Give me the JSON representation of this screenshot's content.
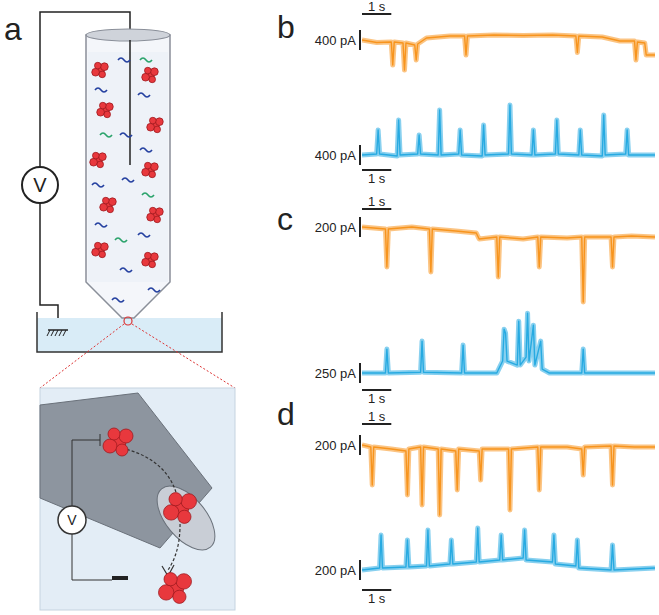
{
  "panel_labels": [
    "a",
    "b",
    "c",
    "d"
  ],
  "schematic": {
    "voltmeter_label": "V",
    "inset_voltmeter_label": "V"
  },
  "chart_data": [
    {
      "type": "line",
      "color": "#f7941d",
      "tick_labels": false,
      "xlim": [
        0,
        10
      ],
      "ylim": [
        -900,
        400
      ],
      "scale_bar": {
        "x": 1,
        "x_label": "1 s",
        "y": 400,
        "y_label": "400 pA"
      },
      "x": [
        0,
        0.5,
        1.0,
        1.05,
        1.1,
        1.4,
        1.45,
        1.5,
        1.8,
        1.85,
        1.9,
        2.2,
        3.0,
        3.5,
        3.55,
        3.6,
        4.5,
        5.5,
        6.5,
        7.3,
        7.35,
        7.4,
        8.2,
        8.8,
        9.3,
        9.35,
        9.4,
        9.65,
        9.7,
        10
      ],
      "values": [
        0,
        -50,
        -40,
        -500,
        -40,
        -60,
        -600,
        -60,
        -100,
        -400,
        -80,
        40,
        80,
        80,
        -300,
        80,
        100,
        90,
        100,
        80,
        -250,
        80,
        60,
        -20,
        -20,
        -400,
        -40,
        -60,
        -300,
        -300
      ]
    },
    {
      "type": "line",
      "color": "#27aae1",
      "tick_labels": false,
      "xlim": [
        0,
        10
      ],
      "ylim": [
        -200,
        1100
      ],
      "scale_bar": {
        "x": 1,
        "x_label": "1 s",
        "y": 400,
        "y_label": "400 pA"
      },
      "x": [
        0,
        0.5,
        0.55,
        0.6,
        1.2,
        1.25,
        1.3,
        1.9,
        1.95,
        2.0,
        2.6,
        2.65,
        2.7,
        3.3,
        3.35,
        3.4,
        4.1,
        4.15,
        4.2,
        5.0,
        5.05,
        5.1,
        5.8,
        5.85,
        5.9,
        6.6,
        6.65,
        6.7,
        7.4,
        7.45,
        7.5,
        8.2,
        8.25,
        8.3,
        9.0,
        9.05,
        9.1,
        10
      ],
      "values": [
        0,
        20,
        500,
        20,
        -20,
        700,
        0,
        20,
        400,
        20,
        0,
        900,
        0,
        20,
        500,
        0,
        -20,
        600,
        0,
        20,
        1000,
        20,
        0,
        500,
        0,
        20,
        700,
        20,
        0,
        500,
        0,
        -20,
        800,
        0,
        20,
        500,
        0,
        0
      ]
    },
    {
      "type": "line",
      "color": "#f7941d",
      "tick_labels": false,
      "xlim": [
        0,
        10
      ],
      "ylim": [
        -780,
        120
      ],
      "scale_bar": {
        "x": 1,
        "x_label": "1 s",
        "y": 200,
        "y_label": "200 pA"
      },
      "x": [
        0,
        0.8,
        0.85,
        0.9,
        1.7,
        2.3,
        2.35,
        2.4,
        3.2,
        3.9,
        4.0,
        4.6,
        4.65,
        4.7,
        5.5,
        6.0,
        6.05,
        6.1,
        7.0,
        7.5,
        7.55,
        7.6,
        8.5,
        8.55,
        8.6,
        9.2,
        10
      ],
      "values": [
        0,
        -20,
        -400,
        -20,
        0,
        -20,
        -450,
        -20,
        -40,
        -60,
        -120,
        -100,
        -500,
        -100,
        -120,
        -100,
        -400,
        -100,
        -110,
        -100,
        -750,
        -100,
        -100,
        -400,
        -100,
        -90,
        -100
      ]
    },
    {
      "type": "line",
      "color": "#27aae1",
      "tick_labels": false,
      "xlim": [
        0,
        10
      ],
      "ylim": [
        -150,
        790
      ],
      "scale_bar": {
        "x": 1,
        "x_label": "1 s",
        "y": 250,
        "y_label": "250 pA"
      },
      "x": [
        0,
        0.8,
        0.85,
        0.9,
        2.0,
        2.05,
        2.1,
        3.4,
        3.45,
        3.5,
        4.6,
        4.8,
        4.85,
        4.9,
        4.95,
        5.3,
        5.35,
        5.4,
        5.6,
        5.65,
        5.7,
        5.85,
        5.9,
        6.1,
        6.15,
        6.4,
        7.5,
        7.55,
        7.6,
        9.0,
        10
      ],
      "values": [
        0,
        0,
        300,
        0,
        10,
        400,
        10,
        0,
        350,
        0,
        0,
        150,
        550,
        500,
        150,
        100,
        650,
        100,
        200,
        750,
        150,
        600,
        100,
        400,
        50,
        0,
        0,
        300,
        0,
        0,
        0
      ]
    },
    {
      "type": "line",
      "color": "#f7941d",
      "tick_labels": false,
      "xlim": [
        0,
        10
      ],
      "ylim": [
        -750,
        150
      ],
      "scale_bar": {
        "x": 1,
        "x_label": "1 s",
        "y": 200,
        "y_label": "200 pA"
      },
      "x": [
        0,
        0.3,
        0.35,
        0.4,
        1.0,
        1.5,
        1.55,
        1.6,
        2.0,
        2.05,
        2.1,
        2.6,
        2.65,
        2.7,
        3.2,
        3.25,
        3.3,
        4.0,
        4.05,
        4.1,
        5.0,
        5.05,
        5.1,
        6.0,
        6.05,
        6.1,
        7.0,
        7.5,
        7.55,
        7.6,
        8.5,
        8.55,
        8.6,
        9.3,
        10
      ],
      "values": [
        0,
        -20,
        -400,
        -20,
        -40,
        -60,
        -500,
        -40,
        -20,
        -600,
        -20,
        -40,
        -700,
        -40,
        -60,
        -450,
        -40,
        -60,
        -350,
        -40,
        -40,
        -650,
        -40,
        -20,
        -450,
        -20,
        -20,
        -40,
        -300,
        -20,
        -10,
        -400,
        -10,
        -20,
        -20
      ]
    },
    {
      "type": "line",
      "color": "#27aae1",
      "tick_labels": false,
      "xlim": [
        0,
        10
      ],
      "ylim": [
        -150,
        450
      ],
      "scale_bar": {
        "x": 1,
        "x_label": "1 s",
        "y": 200,
        "y_label": "200 pA"
      },
      "x": [
        0,
        0.6,
        0.65,
        0.7,
        1.5,
        1.55,
        1.6,
        2.2,
        2.25,
        2.3,
        3.0,
        3.05,
        3.1,
        3.9,
        3.95,
        4.0,
        4.7,
        4.75,
        4.8,
        5.5,
        5.55,
        5.6,
        6.5,
        6.55,
        6.6,
        7.3,
        7.35,
        7.4,
        8.5,
        8.55,
        8.6,
        10
      ],
      "values": [
        0,
        20,
        350,
        20,
        30,
        300,
        30,
        40,
        400,
        40,
        60,
        300,
        60,
        80,
        420,
        80,
        100,
        350,
        100,
        120,
        400,
        100,
        80,
        350,
        60,
        40,
        300,
        20,
        0,
        250,
        0,
        20
      ]
    }
  ]
}
